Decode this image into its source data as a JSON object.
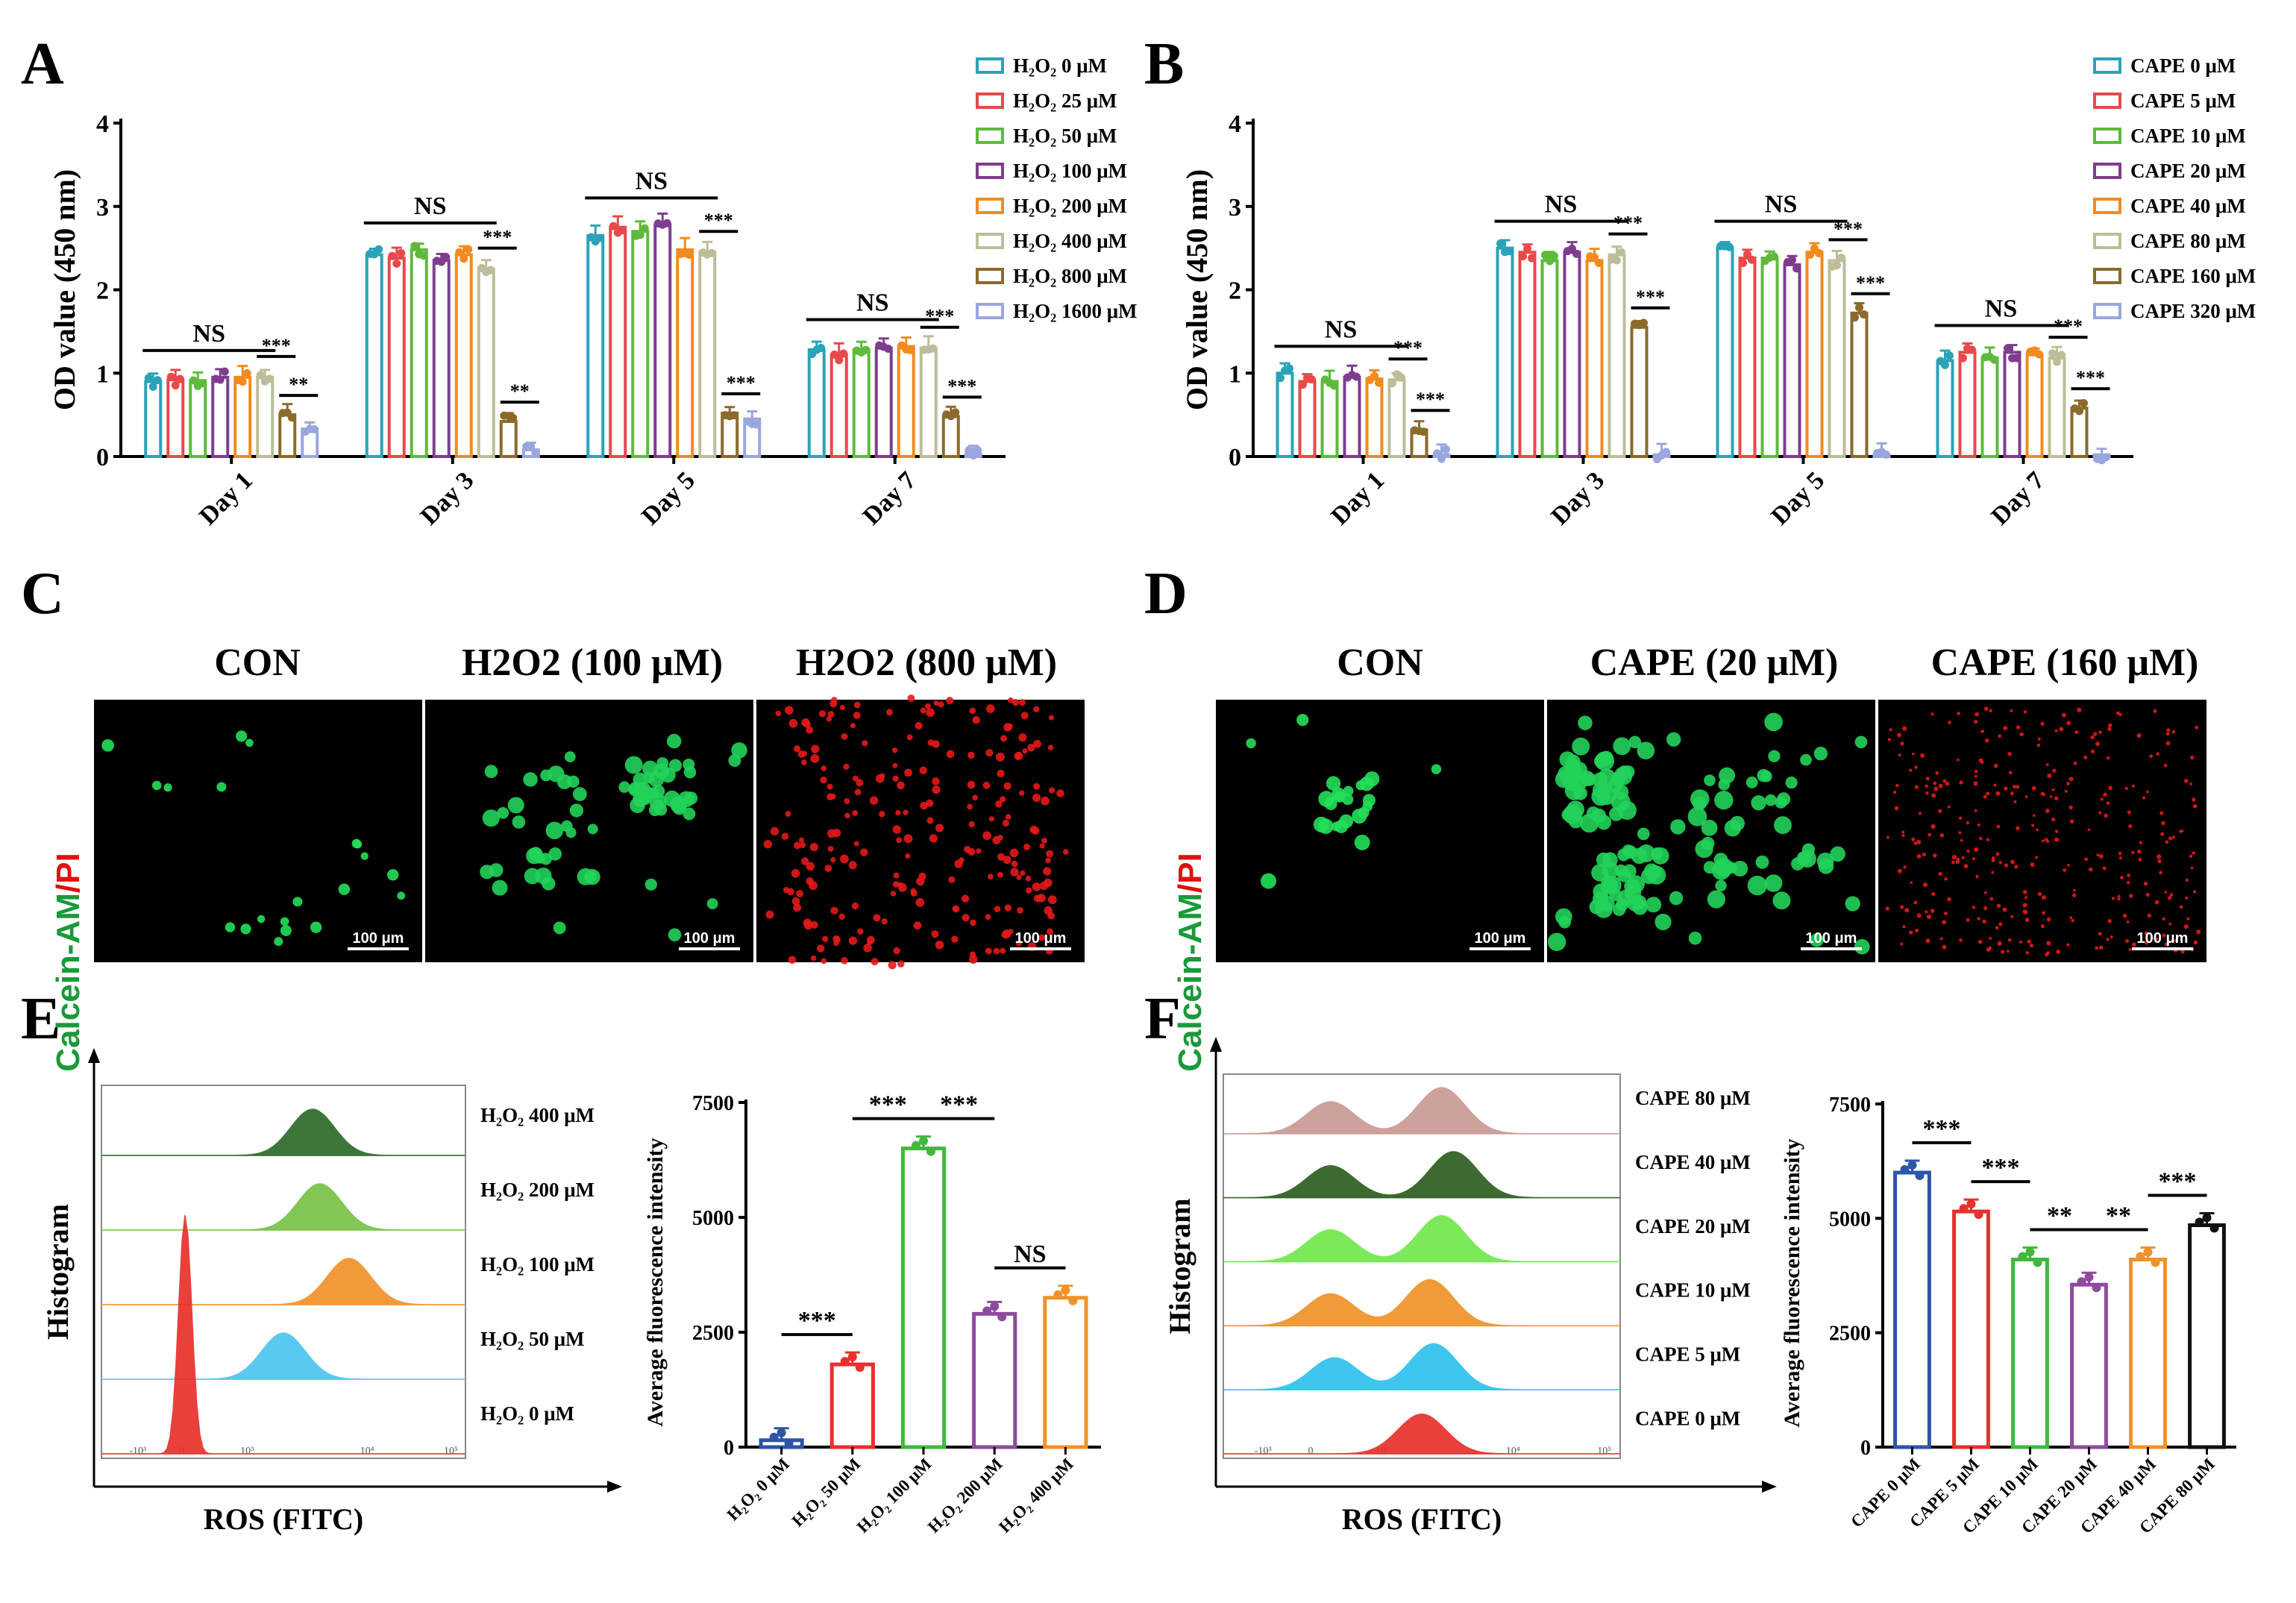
{
  "panel_labels": {
    "a": "A",
    "b": "B",
    "c": "C",
    "d": "D",
    "e": "E",
    "f": "F"
  },
  "colors": {
    "c1": "#2aa3b8",
    "c2": "#e8494a",
    "c3": "#5fba3c",
    "c4": "#7e3d8f",
    "c5": "#f28b1e",
    "c6": "#bdbd9a",
    "c7": "#8b6a2b",
    "c8": "#9aa6de",
    "green": "#1a9a3a",
    "red": "#e01010"
  },
  "chart_data": [
    {
      "id": "A",
      "type": "bar",
      "ylabel": "OD value (450 nm)",
      "ylim": [
        0,
        4
      ],
      "yticks": [
        "0",
        "1",
        "2",
        "3",
        "4"
      ],
      "categories": [
        "Day 1",
        "Day 3",
        "Day 5",
        "Day 7"
      ],
      "series": [
        {
          "name": "H₂O₂ 0 μM",
          "values": [
            0.9,
            2.42,
            2.65,
            1.28
          ]
        },
        {
          "name": "H₂O₂ 25 μM",
          "values": [
            0.92,
            2.38,
            2.75,
            1.22
          ]
        },
        {
          "name": "H₂O₂ 50 μM",
          "values": [
            0.91,
            2.48,
            2.7,
            1.28
          ]
        },
        {
          "name": "H₂O₂ 100 μM",
          "values": [
            0.95,
            2.35,
            2.78,
            1.3
          ]
        },
        {
          "name": "H₂O₂ 200 μM",
          "values": [
            0.95,
            2.42,
            2.48,
            1.32
          ]
        },
        {
          "name": "H₂O₂ 400 μM",
          "values": [
            0.95,
            2.25,
            2.45,
            1.3
          ]
        },
        {
          "name": "H₂O₂ 800 μM",
          "values": [
            0.5,
            0.42,
            0.52,
            0.48
          ]
        },
        {
          "name": "H₂O₂ 1600 μM",
          "values": [
            0.33,
            0.08,
            0.45,
            0.03
          ]
        }
      ],
      "annotations": {
        "ns": [
          "NS",
          "NS",
          "NS",
          "NS"
        ],
        "a": [
          "***",
          "***",
          "***",
          "***"
        ],
        "b": [
          "**",
          "**",
          "***",
          "***"
        ]
      }
    },
    {
      "id": "B",
      "type": "bar",
      "ylabel": "OD value (450 nm)",
      "ylim": [
        0,
        4
      ],
      "yticks": [
        "0",
        "1",
        "2",
        "3",
        "4"
      ],
      "categories": [
        "Day 1",
        "Day 3",
        "Day 5",
        "Day 7"
      ],
      "series": [
        {
          "name": "CAPE 0 μM",
          "values": [
            1.0,
            2.5,
            2.5,
            1.15
          ]
        },
        {
          "name": "CAPE 5 μM",
          "values": [
            0.9,
            2.45,
            2.38,
            1.25
          ]
        },
        {
          "name": "CAPE 10 μM",
          "values": [
            0.9,
            2.35,
            2.38,
            1.18
          ]
        },
        {
          "name": "CAPE 20 μM",
          "values": [
            0.95,
            2.45,
            2.3,
            1.25
          ]
        },
        {
          "name": "CAPE 40 μM",
          "values": [
            0.93,
            2.35,
            2.45,
            1.22
          ]
        },
        {
          "name": "CAPE 80 μM",
          "values": [
            0.92,
            2.42,
            2.35,
            1.18
          ]
        },
        {
          "name": "CAPE 160 μM",
          "values": [
            0.32,
            1.55,
            1.72,
            0.58
          ]
        },
        {
          "name": "CAPE 320 μM",
          "values": [
            0.02,
            0.02,
            0.02,
            0.02
          ]
        }
      ],
      "annotations": {
        "ns": [
          "NS",
          "NS",
          "NS",
          "NS"
        ],
        "a": [
          "***",
          "***",
          "***",
          "***"
        ],
        "b": [
          "***",
          "***",
          "***",
          "***"
        ]
      }
    },
    {
      "id": "E-hist",
      "type": "area",
      "xlabel": "ROS (FITC)",
      "ylabel": "Histogram",
      "ticks": [
        "-10³",
        "0",
        "10³",
        "10⁴",
        "10⁵"
      ],
      "traces": [
        {
          "name": "H₂O₂ 400 μM",
          "peaks": [
            0.58
          ]
        },
        {
          "name": "H₂O₂ 200 μM",
          "peaks": [
            0.6
          ]
        },
        {
          "name": "H₂O₂ 100 μM",
          "peaks": [
            0.68
          ]
        },
        {
          "name": "H₂O₂ 50 μM",
          "peaks": [
            0.5
          ]
        },
        {
          "name": "H₂O₂ 0 μM",
          "peaks": [
            0.23
          ]
        }
      ]
    },
    {
      "id": "E-bar",
      "type": "bar",
      "ylabel": "Average fluorescence intensity",
      "ylim": [
        0,
        7500
      ],
      "yticks": [
        "0",
        "2500",
        "5000",
        "7500"
      ],
      "categories": [
        "H₂O₂ 0 μM",
        "H₂O₂ 50 μM",
        "H₂O₂ 100 μM",
        "H₂O₂ 200 μM",
        "H₂O₂ 400 μM"
      ],
      "values": [
        150,
        1800,
        6500,
        2900,
        3250
      ],
      "annotations": [
        "***",
        "***",
        "***",
        "NS"
      ]
    },
    {
      "id": "F-hist",
      "type": "area",
      "xlabel": "ROS (FITC)",
      "ylabel": "Histogram",
      "ticks": [
        "-10³",
        "0",
        "10³",
        "10⁴",
        "10⁵"
      ],
      "traces": [
        {
          "name": "CAPE 80 μM",
          "peaks": [
            0.27,
            0.55
          ]
        },
        {
          "name": "CAPE 40 μM",
          "peaks": [
            0.27,
            0.58
          ]
        },
        {
          "name": "CAPE 20 μM",
          "peaks": [
            0.27,
            0.55
          ]
        },
        {
          "name": "CAPE 10 μM",
          "peaks": [
            0.27,
            0.52
          ]
        },
        {
          "name": "CAPE 5 μM",
          "peaks": [
            0.28,
            0.53
          ]
        },
        {
          "name": "CAPE 0 μM",
          "peaks": [
            0.5
          ]
        }
      ]
    },
    {
      "id": "F-bar",
      "type": "bar",
      "ylabel": "Average fluorescence intensity",
      "ylim": [
        0,
        7500
      ],
      "yticks": [
        "0",
        "2500",
        "5000",
        "7500"
      ],
      "categories": [
        "CAPE 0 μM",
        "CAPE 5 μM",
        "CAPE 10 μM",
        "CAPE 20 μM",
        "CAPE 40 μM",
        "CAPE 80 μM"
      ],
      "values": [
        6000,
        5150,
        4100,
        3550,
        4100,
        4850
      ],
      "annotations": [
        "***",
        "***",
        "**",
        "**",
        "***"
      ]
    }
  ],
  "micrographs": {
    "c_titles": [
      "CON",
      "H2O2 (100 μM)",
      "H2O2 (800 μM)"
    ],
    "d_titles": [
      "CON",
      "CAPE (20 μM)",
      "CAPE (160 μM)"
    ],
    "stain_green": "Calcein-AM",
    "stain_sep": "/",
    "stain_red": "PI",
    "scale_bar": "100 μm"
  }
}
